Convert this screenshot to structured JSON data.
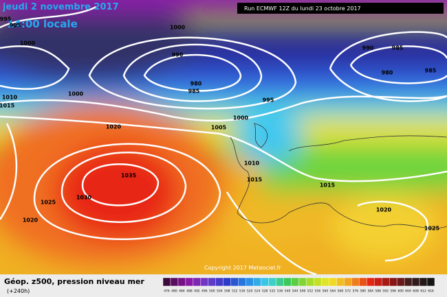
{
  "header": {
    "date": "jeudi 2 novembre 2017",
    "time": "14:00 locale",
    "run": "Run ECMWF 12Z du lundi 23 octobre 2017"
  },
  "copyright": "Copyright 2017 Meteociel.fr",
  "footer": {
    "title": "Géop. z500, pression niveau mer",
    "range": "(+240h)"
  },
  "isobars": [
    995,
    995,
    1000,
    1000,
    990,
    980,
    985,
    990,
    985,
    980,
    985,
    1000,
    1010,
    1015,
    995,
    1020,
    1005,
    1000,
    1010,
    1015,
    1015,
    1035,
    1030,
    1025,
    1020,
    1020,
    1025
  ],
  "colorbar": [
    476,
    480,
    484,
    488,
    492,
    496,
    500,
    504,
    508,
    512,
    516,
    520,
    524,
    528,
    532,
    536,
    540,
    544,
    548,
    552,
    556,
    560,
    564,
    568,
    572,
    576,
    580,
    584,
    588,
    592,
    596,
    600,
    604,
    608,
    612,
    616
  ]
}
